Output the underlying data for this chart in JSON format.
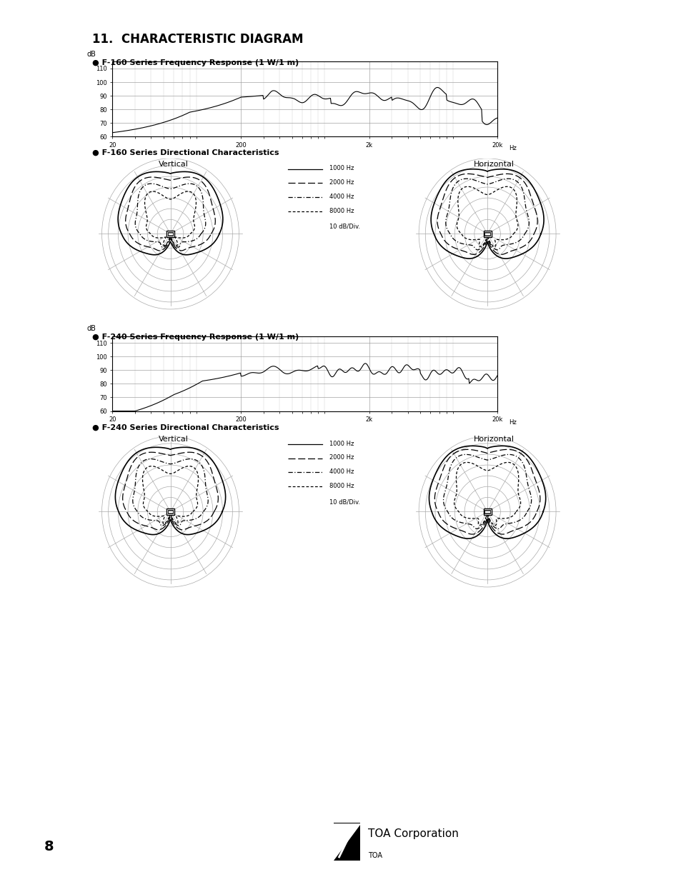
{
  "title": "11.  CHARACTERISTIC DIAGRAM",
  "section1_label": "● F-160 Series Frequency Response (1 W/1 m)",
  "section2_label": "● F-160 Series Directional Characteristics",
  "section3_label": "● F-240 Series Frequency Response (1 W/1 m)",
  "section4_label": "● F-240 Series Directional Characteristics",
  "freq_ylabel": "dB",
  "freq_yticks": [
    60,
    70,
    80,
    90,
    100,
    110
  ],
  "freq_xlabel_unit": "Hz",
  "vertical_label": "Vertical",
  "horizontal_label": "Horizontal",
  "legend_items": [
    "1000 Hz",
    "2000 Hz",
    "4000 Hz",
    "8000 Hz"
  ],
  "legend_note": "10 dB/Div.",
  "page_number": "8",
  "company": "TOA Corporation",
  "company_sub": "TOA",
  "bg_color": "#ffffff",
  "grid_color": "#999999",
  "polar_grid_color": "#aaaaaa"
}
